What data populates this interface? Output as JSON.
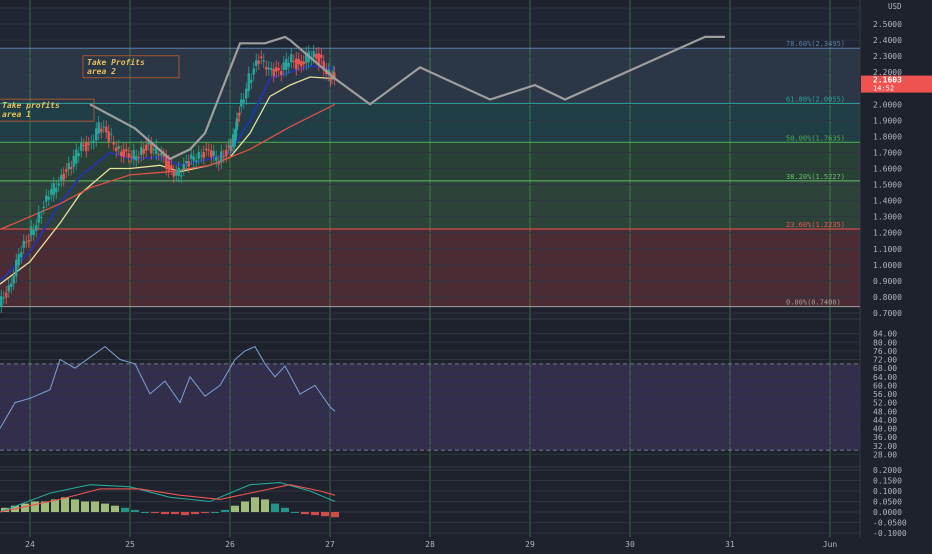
{
  "chart_data": [
    {
      "type": "candlestick",
      "currency": "USD",
      "price_axis": {
        "ylim": [
          0.7,
          2.6
        ],
        "ticks": [
          "2.6000",
          "2.5000",
          "2.4000",
          "2.3000",
          "2.2000",
          "2.1000",
          "2.0000",
          "1.9000",
          "1.8000",
          "1.7000",
          "1.6000",
          "1.5000",
          "1.4000",
          "1.3000",
          "1.2000",
          "1.1000",
          "1.0000",
          "0.9000",
          "0.8000",
          "0.7000"
        ],
        "last_price": "2.1603",
        "countdown": "14:52"
      },
      "x_axis": {
        "labels": [
          "24",
          "25",
          "26",
          "27",
          "28",
          "29",
          "30",
          "31",
          "Jun"
        ],
        "day_range": [
          23.7,
          32.3
        ]
      },
      "fib_levels": [
        {
          "label": "78.60%(2.3495)",
          "value": 2.3495,
          "color": "#5b7fa5"
        },
        {
          "label": "61.80%(2.0055)",
          "value": 2.0055,
          "color": "#26a69a"
        },
        {
          "label": "50.00%(1.7635)",
          "value": 1.7635,
          "color": "#4caf50"
        },
        {
          "label": "38.20%(1.5227)",
          "value": 1.5227,
          "color": "#66bb6a"
        },
        {
          "label": "23.60%(1.2235)",
          "value": 1.2235,
          "color": "#ef5350"
        },
        {
          "label": "0.00%(0.7400)",
          "value": 0.74,
          "color": "#9e9e9e"
        }
      ],
      "annotations": [
        {
          "text": [
            "Take Profits",
            "area 2"
          ],
          "day": 24.55,
          "price": 2.24
        },
        {
          "text": [
            "Take profits",
            "area 1"
          ],
          "day": 23.7,
          "price": 1.97
        }
      ],
      "series": [
        {
          "name": "close",
          "points": [
            [
              23.7,
              0.74
            ],
            [
              23.8,
              0.86
            ],
            [
              23.9,
              1.05
            ],
            [
              24.0,
              1.18
            ],
            [
              24.1,
              1.3
            ],
            [
              24.2,
              1.43
            ],
            [
              24.3,
              1.53
            ],
            [
              24.4,
              1.6
            ],
            [
              24.5,
              1.72
            ],
            [
              24.6,
              1.75
            ],
            [
              24.7,
              1.86
            ],
            [
              24.8,
              1.8
            ],
            [
              24.9,
              1.72
            ],
            [
              25.0,
              1.66
            ],
            [
              25.1,
              1.7
            ],
            [
              25.2,
              1.74
            ],
            [
              25.3,
              1.7
            ],
            [
              25.4,
              1.6
            ],
            [
              25.5,
              1.57
            ],
            [
              25.6,
              1.64
            ],
            [
              25.7,
              1.7
            ],
            [
              25.8,
              1.69
            ],
            [
              25.9,
              1.66
            ],
            [
              26.0,
              1.72
            ],
            [
              26.05,
              1.8
            ],
            [
              26.1,
              1.96
            ],
            [
              26.2,
              2.16
            ],
            [
              26.3,
              2.27
            ],
            [
              26.4,
              2.24
            ],
            [
              26.5,
              2.18
            ],
            [
              26.6,
              2.29
            ],
            [
              26.7,
              2.24
            ],
            [
              26.8,
              2.31
            ],
            [
              26.9,
              2.28
            ],
            [
              27.0,
              2.19
            ],
            [
              27.05,
              2.16
            ]
          ]
        },
        {
          "name": "ema_fast",
          "points": [
            [
              23.7,
              0.9
            ],
            [
              24.0,
              1.08
            ],
            [
              24.3,
              1.38
            ],
            [
              24.5,
              1.55
            ],
            [
              24.8,
              1.7
            ],
            [
              25.0,
              1.66
            ],
            [
              25.3,
              1.67
            ],
            [
              25.5,
              1.62
            ],
            [
              25.8,
              1.66
            ],
            [
              26.0,
              1.7
            ],
            [
              26.2,
              1.9
            ],
            [
              26.4,
              2.16
            ],
            [
              26.6,
              2.2
            ],
            [
              26.8,
              2.24
            ],
            [
              27.05,
              2.22
            ]
          ]
        },
        {
          "name": "ema_mid",
          "points": [
            [
              23.7,
              0.88
            ],
            [
              24.0,
              1.02
            ],
            [
              24.3,
              1.26
            ],
            [
              24.5,
              1.44
            ],
            [
              24.8,
              1.6
            ],
            [
              25.0,
              1.6
            ],
            [
              25.3,
              1.62
            ],
            [
              25.5,
              1.58
            ],
            [
              25.8,
              1.62
            ],
            [
              26.0,
              1.67
            ],
            [
              26.2,
              1.82
            ],
            [
              26.4,
              2.05
            ],
            [
              26.6,
              2.12
            ],
            [
              26.8,
              2.17
            ],
            [
              27.05,
              2.16
            ]
          ]
        },
        {
          "name": "ema_slow",
          "points": [
            [
              23.7,
              1.22
            ],
            [
              24.0,
              1.3
            ],
            [
              24.3,
              1.38
            ],
            [
              24.6,
              1.48
            ],
            [
              25.0,
              1.56
            ],
            [
              25.4,
              1.58
            ],
            [
              25.8,
              1.62
            ],
            [
              26.2,
              1.72
            ],
            [
              26.6,
              1.86
            ],
            [
              27.05,
              2.0
            ]
          ]
        },
        {
          "name": "projection_path",
          "points": [
            [
              24.6,
              2.0
            ],
            [
              25.05,
              1.85
            ],
            [
              25.4,
              1.66
            ],
            [
              25.6,
              1.72
            ],
            [
              25.75,
              1.82
            ],
            [
              26.1,
              2.38
            ],
            [
              26.35,
              2.38
            ],
            [
              26.55,
              2.42
            ],
            [
              26.6,
              2.4
            ],
            [
              27.05,
              2.16
            ],
            [
              27.4,
              2.0
            ],
            [
              27.9,
              2.23
            ],
            [
              28.6,
              2.03
            ],
            [
              29.05,
              2.12
            ],
            [
              29.35,
              2.03
            ],
            [
              30.75,
              2.42
            ],
            [
              30.95,
              2.42
            ]
          ]
        }
      ]
    },
    {
      "type": "line",
      "name": "oscillator",
      "ylim": [
        24,
        88
      ],
      "ticks": [
        "84.00",
        "80.00",
        "76.00",
        "72.00",
        "68.00",
        "64.00",
        "60.00",
        "56.00",
        "52.00",
        "48.00",
        "44.00",
        "40.00",
        "36.00",
        "32.00",
        "28.00"
      ],
      "band": [
        30,
        70
      ],
      "points": [
        [
          23.7,
          40
        ],
        [
          23.85,
          52
        ],
        [
          24.0,
          54
        ],
        [
          24.2,
          58
        ],
        [
          24.3,
          72
        ],
        [
          24.45,
          68
        ],
        [
          24.6,
          73
        ],
        [
          24.75,
          78
        ],
        [
          24.9,
          72
        ],
        [
          25.05,
          70
        ],
        [
          25.2,
          56
        ],
        [
          25.35,
          62
        ],
        [
          25.5,
          52
        ],
        [
          25.6,
          64
        ],
        [
          25.75,
          55
        ],
        [
          25.9,
          60
        ],
        [
          26.05,
          72
        ],
        [
          26.15,
          76
        ],
        [
          26.25,
          78
        ],
        [
          26.35,
          70
        ],
        [
          26.45,
          64
        ],
        [
          26.55,
          69
        ],
        [
          26.7,
          56
        ],
        [
          26.85,
          60
        ],
        [
          27.0,
          50
        ],
        [
          27.05,
          48
        ]
      ]
    },
    {
      "type": "bar",
      "name": "histogram",
      "ylim": [
        -0.1,
        0.2
      ],
      "ticks": [
        "0.2000",
        "0.1500",
        "0.1000",
        "0.0500",
        "0.0000",
        "-0.0500",
        "-0.1000"
      ],
      "x": [
        23.75,
        23.85,
        23.95,
        24.05,
        24.15,
        24.25,
        24.35,
        24.45,
        24.55,
        24.65,
        24.75,
        24.85,
        24.95,
        25.05,
        25.15,
        25.25,
        25.35,
        25.45,
        25.55,
        25.65,
        25.75,
        25.85,
        25.95,
        26.05,
        26.15,
        26.25,
        26.35,
        26.45,
        26.55,
        26.65,
        26.75,
        26.85,
        26.95,
        27.05
      ],
      "values": [
        0.02,
        0.03,
        0.04,
        0.05,
        0.05,
        0.06,
        0.07,
        0.06,
        0.05,
        0.05,
        0.04,
        0.03,
        0.02,
        0.01,
        0.0,
        -0.005,
        -0.01,
        -0.01,
        -0.015,
        -0.01,
        -0.005,
        0.0,
        0.01,
        0.03,
        0.05,
        0.07,
        0.06,
        0.04,
        0.02,
        0.0,
        -0.01,
        -0.015,
        -0.02,
        -0.025
      ],
      "lines": [
        {
          "name": "macd",
          "points": [
            [
              23.7,
              0.0
            ],
            [
              24.2,
              0.09
            ],
            [
              24.6,
              0.13
            ],
            [
              25.0,
              0.12
            ],
            [
              25.4,
              0.07
            ],
            [
              25.8,
              0.05
            ],
            [
              26.2,
              0.13
            ],
            [
              26.5,
              0.14
            ],
            [
              26.8,
              0.1
            ],
            [
              27.05,
              0.05
            ]
          ]
        },
        {
          "name": "signal",
          "points": [
            [
              23.7,
              0.0
            ],
            [
              24.3,
              0.06
            ],
            [
              24.7,
              0.11
            ],
            [
              25.1,
              0.11
            ],
            [
              25.5,
              0.08
            ],
            [
              25.9,
              0.06
            ],
            [
              26.3,
              0.1
            ],
            [
              26.6,
              0.13
            ],
            [
              26.9,
              0.1
            ],
            [
              27.05,
              0.08
            ]
          ]
        }
      ]
    }
  ]
}
